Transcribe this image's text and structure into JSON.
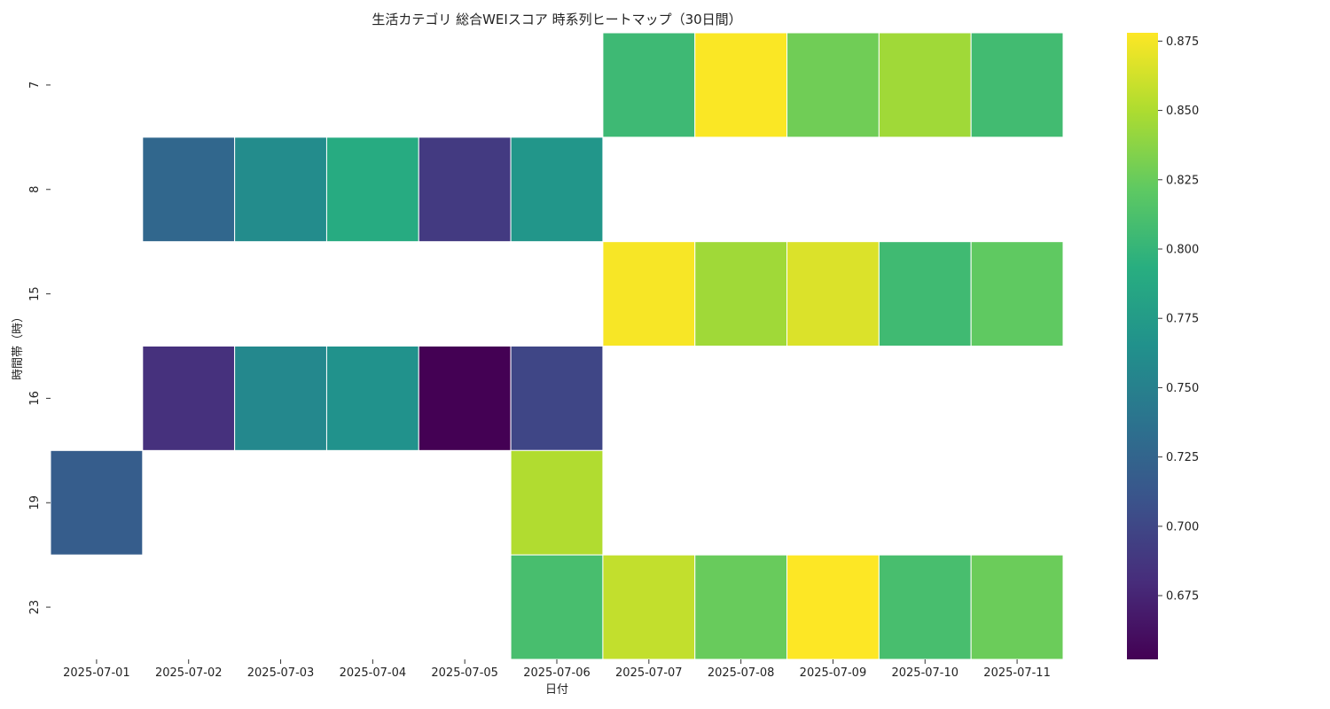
{
  "chart_data": {
    "type": "heatmap",
    "title": "生活カテゴリ 総合WEIスコア 時系列ヒートマップ（30日間）",
    "xlabel": "日付",
    "ylabel": "時間帯（時）",
    "x": [
      "2025-07-01",
      "2025-07-02",
      "2025-07-03",
      "2025-07-04",
      "2025-07-05",
      "2025-07-06",
      "2025-07-07",
      "2025-07-08",
      "2025-07-09",
      "2025-07-10",
      "2025-07-11"
    ],
    "y": [
      "7",
      "8",
      "15",
      "16",
      "19",
      "23"
    ],
    "values": [
      [
        null,
        null,
        null,
        null,
        null,
        null,
        0.805,
        0.877,
        0.828,
        0.845,
        0.807
      ],
      [
        null,
        0.727,
        0.76,
        0.79,
        0.69,
        0.77,
        null,
        null,
        null,
        null,
        null
      ],
      [
        null,
        null,
        null,
        null,
        null,
        null,
        0.876,
        0.845,
        0.866,
        0.806,
        0.822
      ],
      [
        null,
        0.683,
        0.757,
        0.766,
        0.652,
        0.699,
        null,
        null,
        null,
        null,
        null
      ],
      [
        0.718,
        null,
        null,
        null,
        null,
        0.851,
        null,
        null,
        null,
        null,
        null
      ],
      [
        null,
        null,
        null,
        null,
        null,
        0.81,
        0.857,
        0.825,
        0.878,
        0.81,
        0.826
      ]
    ],
    "colorscale": "viridis",
    "colorbar": {
      "range": [
        0.652,
        0.878
      ],
      "ticks": [
        0.675,
        0.7,
        0.725,
        0.75,
        0.775,
        0.8,
        0.825,
        0.85,
        0.875
      ],
      "tick_labels": [
        "0.675",
        "0.700",
        "0.725",
        "0.750",
        "0.775",
        "0.800",
        "0.825",
        "0.850",
        "0.875"
      ]
    }
  }
}
